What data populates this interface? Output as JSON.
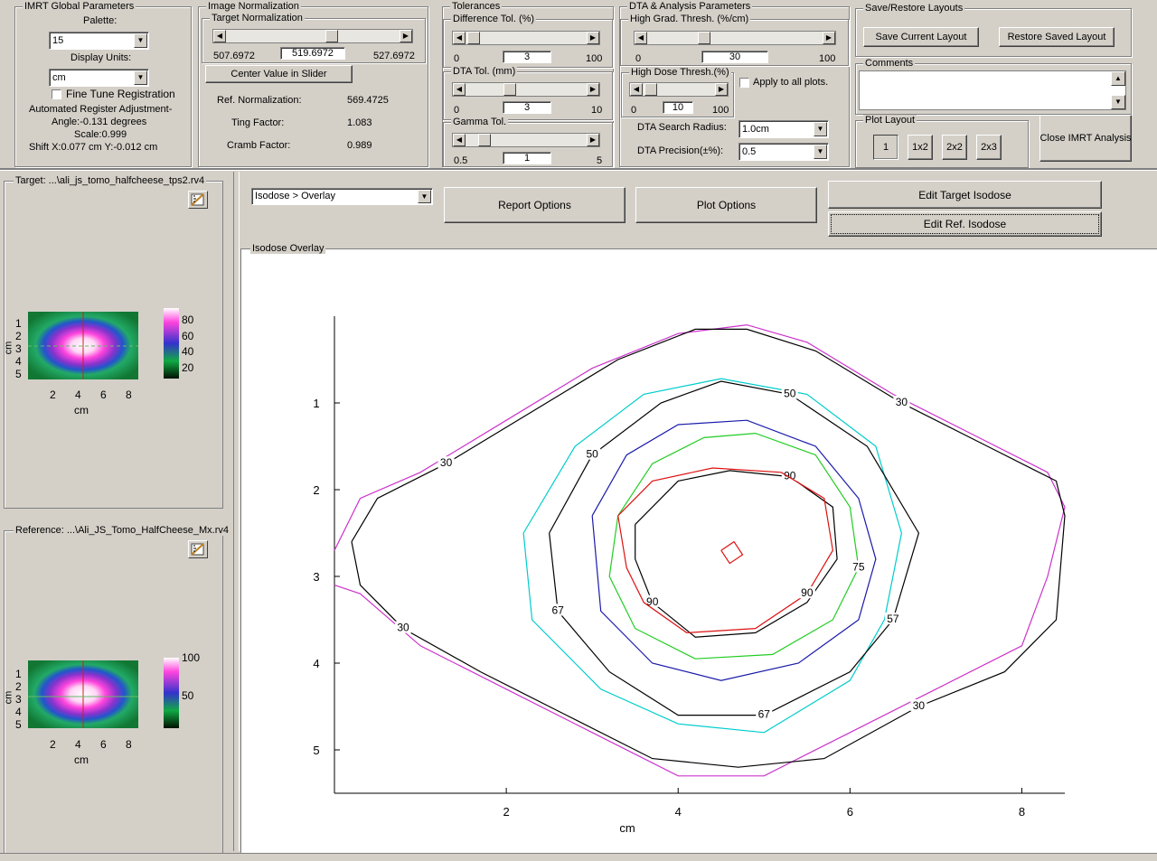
{
  "imrt": {
    "title": "IMRT Global Parameters",
    "palette_label": "Palette:",
    "palette_value": "15",
    "units_label": "Display Units:",
    "units_value": "cm",
    "fine_tune": "Fine Tune Registration",
    "auto_reg": "Automated Register Adjustment-",
    "angle": "Angle:-0.131 degrees",
    "scale": "Scale:0.999",
    "shift": "Shift X:0.077 cm Y:-0.012 cm"
  },
  "imgnorm": {
    "title": "Image Normalization",
    "target_norm": "Target Normalization",
    "min": "507.6972",
    "current": "519.6972",
    "max": "527.6972",
    "slider_fraction": 0.6,
    "center_btn": "Center Value in Slider",
    "ref_label": "Ref. Normalization:",
    "ref_value": "569.4725",
    "ting_label": "Ting Factor:",
    "ting_value": "1.083",
    "cramb_label": "Cramb Factor:",
    "cramb_value": "0.989"
  },
  "tol": {
    "title": "Tolerances",
    "diff_title": "Difference Tol. (%)",
    "diff_min": "0",
    "diff_val": "3",
    "diff_max": "100",
    "diff_fraction": 0.03,
    "dta_title": "DTA Tol. (mm)",
    "dta_min": "0",
    "dta_val": "3",
    "dta_max": "10",
    "dta_fraction": 0.3,
    "gamma_title": "Gamma Tol.",
    "gamma_min": "0.5",
    "gamma_val": "1",
    "gamma_max": "5",
    "gamma_fraction": 0.11
  },
  "dta": {
    "title": "DTA & Analysis Parameters",
    "hg_title": "High Grad. Thresh. (%/cm)",
    "hg_min": "0",
    "hg_val": "30",
    "hg_max": "100",
    "hg_fraction": 0.3,
    "hd_title": "High Dose Thresh.(%)",
    "hd_min": "0",
    "hd_val": "10",
    "hd_max": "100",
    "hd_fraction": 0.1,
    "apply_all": "Apply to all plots.",
    "search_label": "DTA Search Radius:",
    "search_value": "1.0cm",
    "precision_label": "DTA Precision(±%):",
    "precision_value": "0.5"
  },
  "layouts": {
    "title": "Save/Restore Layouts",
    "save": "Save Current Layout",
    "restore": "Restore Saved Layout",
    "comments": "Comments",
    "plot_layout": "Plot Layout",
    "l1": "1",
    "l2": "1x2",
    "l3": "2x2",
    "l4": "2x3",
    "close": "Close IMRT Analysis"
  },
  "target_panel": {
    "title": "Target:  ...\\ali_js_tomo_halfcheese_tps2.rv4",
    "y_unit": "cm",
    "x_unit": "cm",
    "yticks": [
      "1",
      "2",
      "3",
      "4",
      "5"
    ],
    "xticks": [
      "2",
      "4",
      "6",
      "8"
    ],
    "cbar": [
      "80",
      "60",
      "40",
      "20"
    ]
  },
  "ref_panel": {
    "title": "Reference:  ...\\Ali_JS_Tomo_HalfCheese_Mx.rv4",
    "y_unit": "cm",
    "x_unit": "cm",
    "yticks": [
      "1",
      "2",
      "3",
      "4",
      "5"
    ],
    "xticks": [
      "2",
      "4",
      "6",
      "8"
    ],
    "cbar": [
      "100",
      "50"
    ]
  },
  "main": {
    "view_select": "Isodose > Overlay",
    "report_btn": "Report Options",
    "plot_btn": "Plot Options",
    "edit_target": "Edit Target Isodose",
    "edit_ref": "Edit Ref. Isodose",
    "plot_title": "Isodose Overlay"
  },
  "chart_data": {
    "type": "line",
    "title": "",
    "xlabel": "cm",
    "ylabel": "",
    "xlim": [
      0,
      8.5
    ],
    "ylim": [
      5.5,
      0
    ],
    "xticks": [
      2,
      4,
      6,
      8
    ],
    "yticks": [
      1,
      2,
      3,
      4,
      5
    ],
    "grid": false,
    "series": [
      {
        "color": "#cc33cc",
        "points": [
          [
            0,
            2.7
          ],
          [
            0.3,
            2.1
          ],
          [
            1,
            1.8
          ],
          [
            2,
            1.2
          ],
          [
            3,
            0.6
          ],
          [
            4,
            0.2
          ],
          [
            4.8,
            0.1
          ],
          [
            5.5,
            0.3
          ],
          [
            6.5,
            0.9
          ],
          [
            7.5,
            1.4
          ],
          [
            8.3,
            1.8
          ],
          [
            8.5,
            2.2
          ],
          [
            8.3,
            3
          ],
          [
            8,
            3.8
          ],
          [
            7,
            4.3
          ],
          [
            6,
            4.8
          ],
          [
            5,
            5.3
          ],
          [
            4,
            5.3
          ],
          [
            3,
            4.8
          ],
          [
            2,
            4.3
          ],
          [
            1,
            3.8
          ],
          [
            0.3,
            3.2
          ],
          [
            0,
            3.1
          ]
        ]
      },
      {
        "color": "#000000",
        "labels": [
          "30",
          "30",
          "30",
          "30"
        ],
        "points": [
          [
            0.2,
            2.6
          ],
          [
            0.5,
            2.1
          ],
          [
            1.3,
            1.7
          ],
          [
            2.3,
            1.1
          ],
          [
            3.3,
            0.5
          ],
          [
            4.2,
            0.15
          ],
          [
            4.8,
            0.15
          ],
          [
            5.6,
            0.4
          ],
          [
            6.6,
            1
          ],
          [
            7.6,
            1.5
          ],
          [
            8.4,
            1.9
          ],
          [
            8.5,
            2.3
          ],
          [
            8.4,
            3.5
          ],
          [
            7.8,
            4.1
          ],
          [
            6.8,
            4.5
          ],
          [
            5.7,
            5.1
          ],
          [
            4.7,
            5.2
          ],
          [
            3.7,
            5.1
          ],
          [
            2.7,
            4.6
          ],
          [
            1.7,
            4.1
          ],
          [
            0.8,
            3.6
          ],
          [
            0.3,
            3.1
          ],
          [
            0.2,
            2.6
          ]
        ]
      },
      {
        "color": "#00cccc",
        "points": [
          [
            2.2,
            2.5
          ],
          [
            2.8,
            1.5
          ],
          [
            3.6,
            0.9
          ],
          [
            4.5,
            0.72
          ],
          [
            5.5,
            0.9
          ],
          [
            6.3,
            1.5
          ],
          [
            6.6,
            2.5
          ],
          [
            6.4,
            3.5
          ],
          [
            6,
            4.2
          ],
          [
            5,
            4.8
          ],
          [
            4,
            4.7
          ],
          [
            3.1,
            4.3
          ],
          [
            2.3,
            3.5
          ],
          [
            2.2,
            2.5
          ]
        ]
      },
      {
        "color": "#000000",
        "labels": [
          "50",
          "50",
          "57",
          "67",
          "67"
        ],
        "points": [
          [
            2.5,
            2.5
          ],
          [
            3,
            1.6
          ],
          [
            3.8,
            1.0
          ],
          [
            4.5,
            0.75
          ],
          [
            5.3,
            0.9
          ],
          [
            6.2,
            1.5
          ],
          [
            6.8,
            2.5
          ],
          [
            6.5,
            3.5
          ],
          [
            6,
            4.1
          ],
          [
            5,
            4.6
          ],
          [
            4,
            4.6
          ],
          [
            3.2,
            4.1
          ],
          [
            2.6,
            3.4
          ],
          [
            2.5,
            2.5
          ]
        ]
      },
      {
        "color": "#1a1aaa",
        "points": [
          [
            3,
            2.3
          ],
          [
            3.4,
            1.6
          ],
          [
            4,
            1.25
          ],
          [
            4.8,
            1.2
          ],
          [
            5.6,
            1.5
          ],
          [
            6.1,
            2.1
          ],
          [
            6.3,
            2.8
          ],
          [
            6.1,
            3.5
          ],
          [
            5.4,
            4.0
          ],
          [
            4.5,
            4.2
          ],
          [
            3.7,
            4.0
          ],
          [
            3.1,
            3.4
          ],
          [
            3,
            2.3
          ]
        ]
      },
      {
        "color": "#22cc22",
        "labels": [
          "75"
        ],
        "points": [
          [
            3.3,
            2.3
          ],
          [
            3.7,
            1.7
          ],
          [
            4.3,
            1.4
          ],
          [
            4.9,
            1.35
          ],
          [
            5.6,
            1.6
          ],
          [
            6,
            2.2
          ],
          [
            6.1,
            2.9
          ],
          [
            5.8,
            3.5
          ],
          [
            5.1,
            3.9
          ],
          [
            4.2,
            3.95
          ],
          [
            3.5,
            3.6
          ],
          [
            3.2,
            3.0
          ],
          [
            3.3,
            2.3
          ]
        ]
      },
      {
        "color": "#000000",
        "labels": [
          "90",
          "90"
        ],
        "points": [
          [
            3.5,
            2.4
          ],
          [
            4.0,
            1.9
          ],
          [
            4.6,
            1.78
          ],
          [
            5.3,
            1.85
          ],
          [
            5.8,
            2.2
          ],
          [
            5.85,
            2.8
          ],
          [
            5.5,
            3.3
          ],
          [
            4.9,
            3.65
          ],
          [
            4.2,
            3.7
          ],
          [
            3.7,
            3.3
          ],
          [
            3.5,
            2.8
          ],
          [
            3.5,
            2.4
          ]
        ]
      },
      {
        "color": "#dd1111",
        "labels": [
          "90"
        ],
        "points": [
          [
            3.3,
            2.3
          ],
          [
            3.7,
            1.9
          ],
          [
            4.4,
            1.75
          ],
          [
            5.2,
            1.8
          ],
          [
            5.7,
            2.1
          ],
          [
            5.8,
            2.7
          ],
          [
            5.5,
            3.2
          ],
          [
            4.9,
            3.6
          ],
          [
            4.1,
            3.65
          ],
          [
            3.6,
            3.3
          ],
          [
            3.4,
            2.9
          ],
          [
            3.3,
            2.3
          ]
        ]
      },
      {
        "color": "#dd1111",
        "points": [
          [
            4.5,
            2.7
          ],
          [
            4.65,
            2.6
          ],
          [
            4.75,
            2.75
          ],
          [
            4.6,
            2.85
          ],
          [
            4.5,
            2.7
          ]
        ]
      }
    ]
  }
}
